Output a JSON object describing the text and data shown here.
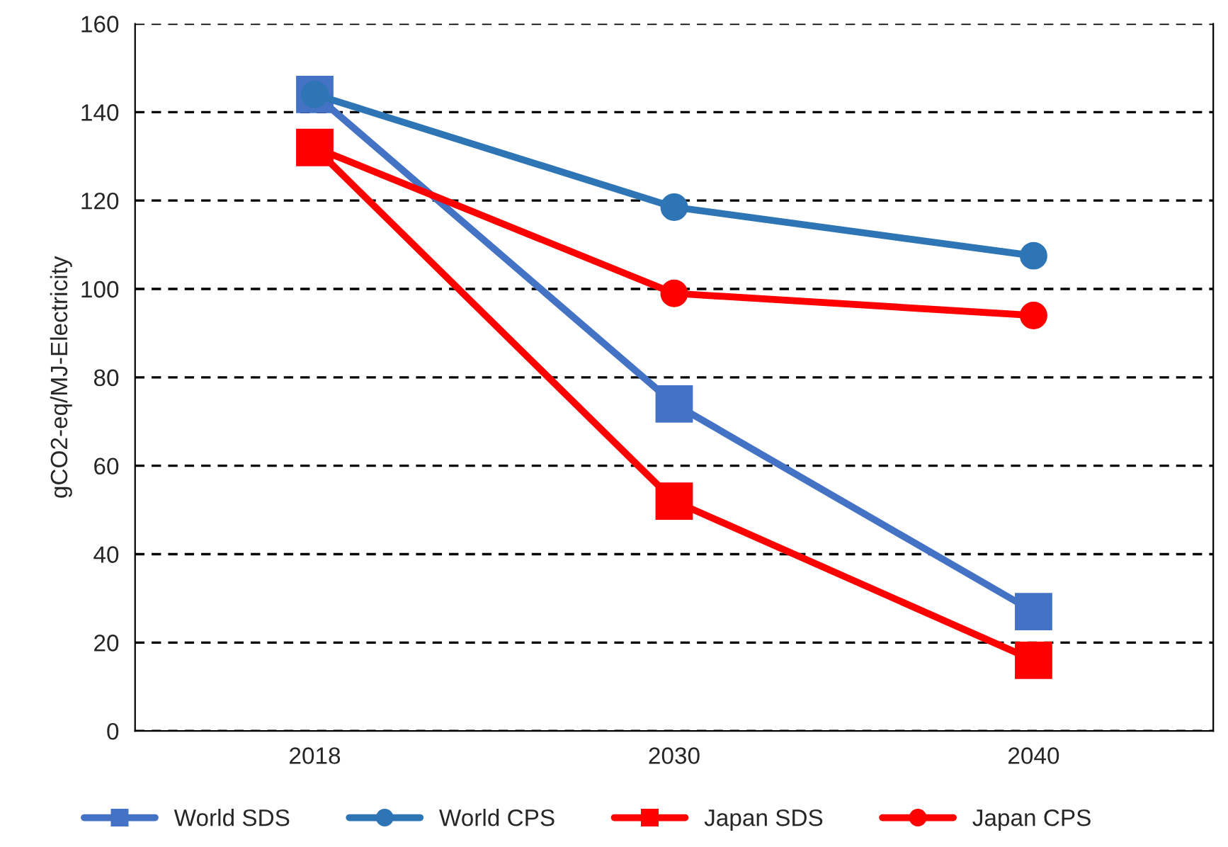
{
  "chart_data": {
    "type": "line",
    "ylabel": "gCO2-eq/MJ-Electricity",
    "categories": [
      "2018",
      "2030",
      "2040"
    ],
    "series": [
      {
        "name": "World SDS",
        "color": "#4472c4",
        "marker": "square",
        "values": [
          144,
          74,
          27
        ]
      },
      {
        "name": "World CPS",
        "color": "#2e75b6",
        "marker": "circle",
        "values": [
          144,
          118.5,
          107.5
        ]
      },
      {
        "name": "Japan SDS",
        "color": "#ff0000",
        "marker": "square",
        "values": [
          132,
          52,
          16
        ]
      },
      {
        "name": "Japan CPS",
        "color": "#ff0000",
        "marker": "circle",
        "values": [
          132,
          99,
          94
        ]
      }
    ],
    "ylim": [
      0,
      160
    ],
    "yticks": [
      0,
      20,
      40,
      60,
      80,
      100,
      120,
      140,
      160
    ],
    "grid": "y",
    "legend": "bottom",
    "line_style": "solid"
  }
}
